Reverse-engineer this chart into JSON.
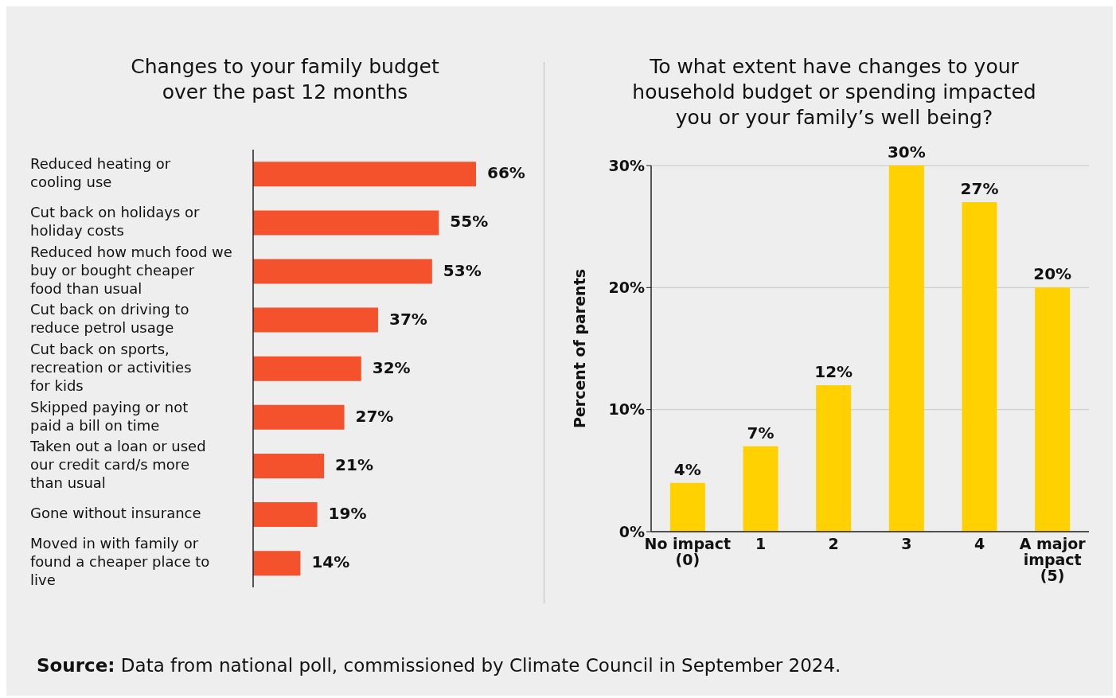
{
  "chart_data": [
    {
      "type": "bar",
      "orientation": "horizontal",
      "title": "Changes to your family budget\nover the past 12 months",
      "categories": [
        "Reduced heating or cooling use",
        "Cut back on holidays or holiday costs",
        "Reduced how much food we buy or bought cheaper food than usual",
        "Cut back on driving to reduce petrol usage",
        "Cut back on sports, recreation or activities for kids",
        "Skipped paying or not paid a bill on time",
        "Taken out a loan or used our credit card/s more than usual",
        "Gone without insurance",
        "Moved in with family or found a cheaper place to live"
      ],
      "values": [
        66,
        55,
        53,
        37,
        32,
        27,
        21,
        19,
        14
      ],
      "value_labels": [
        "66%",
        "55%",
        "53%",
        "37%",
        "32%",
        "27%",
        "21%",
        "19%",
        "14%"
      ],
      "color": "#f4522d",
      "grid": false
    },
    {
      "type": "bar",
      "title": "To what extent have changes to your\nhousehold budget or spending impacted\nyou or your family’s well being?",
      "categories": [
        "No impact (0)",
        "1",
        "2",
        "3",
        "4",
        "A major impact (5)"
      ],
      "values": [
        4,
        7,
        12,
        30,
        27,
        20
      ],
      "value_labels": [
        "4%",
        "7%",
        "12%",
        "30%",
        "27%",
        "20%"
      ],
      "color": "#ffd100",
      "ylabel": "Percent of parents",
      "ylim": [
        0,
        30
      ],
      "yticks": [
        {
          "value": 0,
          "label": "0%"
        },
        {
          "value": 10,
          "label": "10%"
        },
        {
          "value": 20,
          "label": "20%"
        },
        {
          "value": 30,
          "label": "30%"
        }
      ],
      "grid": "y",
      "annotations": [
        "Source: Data from national poll, commissioned by Climate Council in September 2024."
      ]
    }
  ]
}
